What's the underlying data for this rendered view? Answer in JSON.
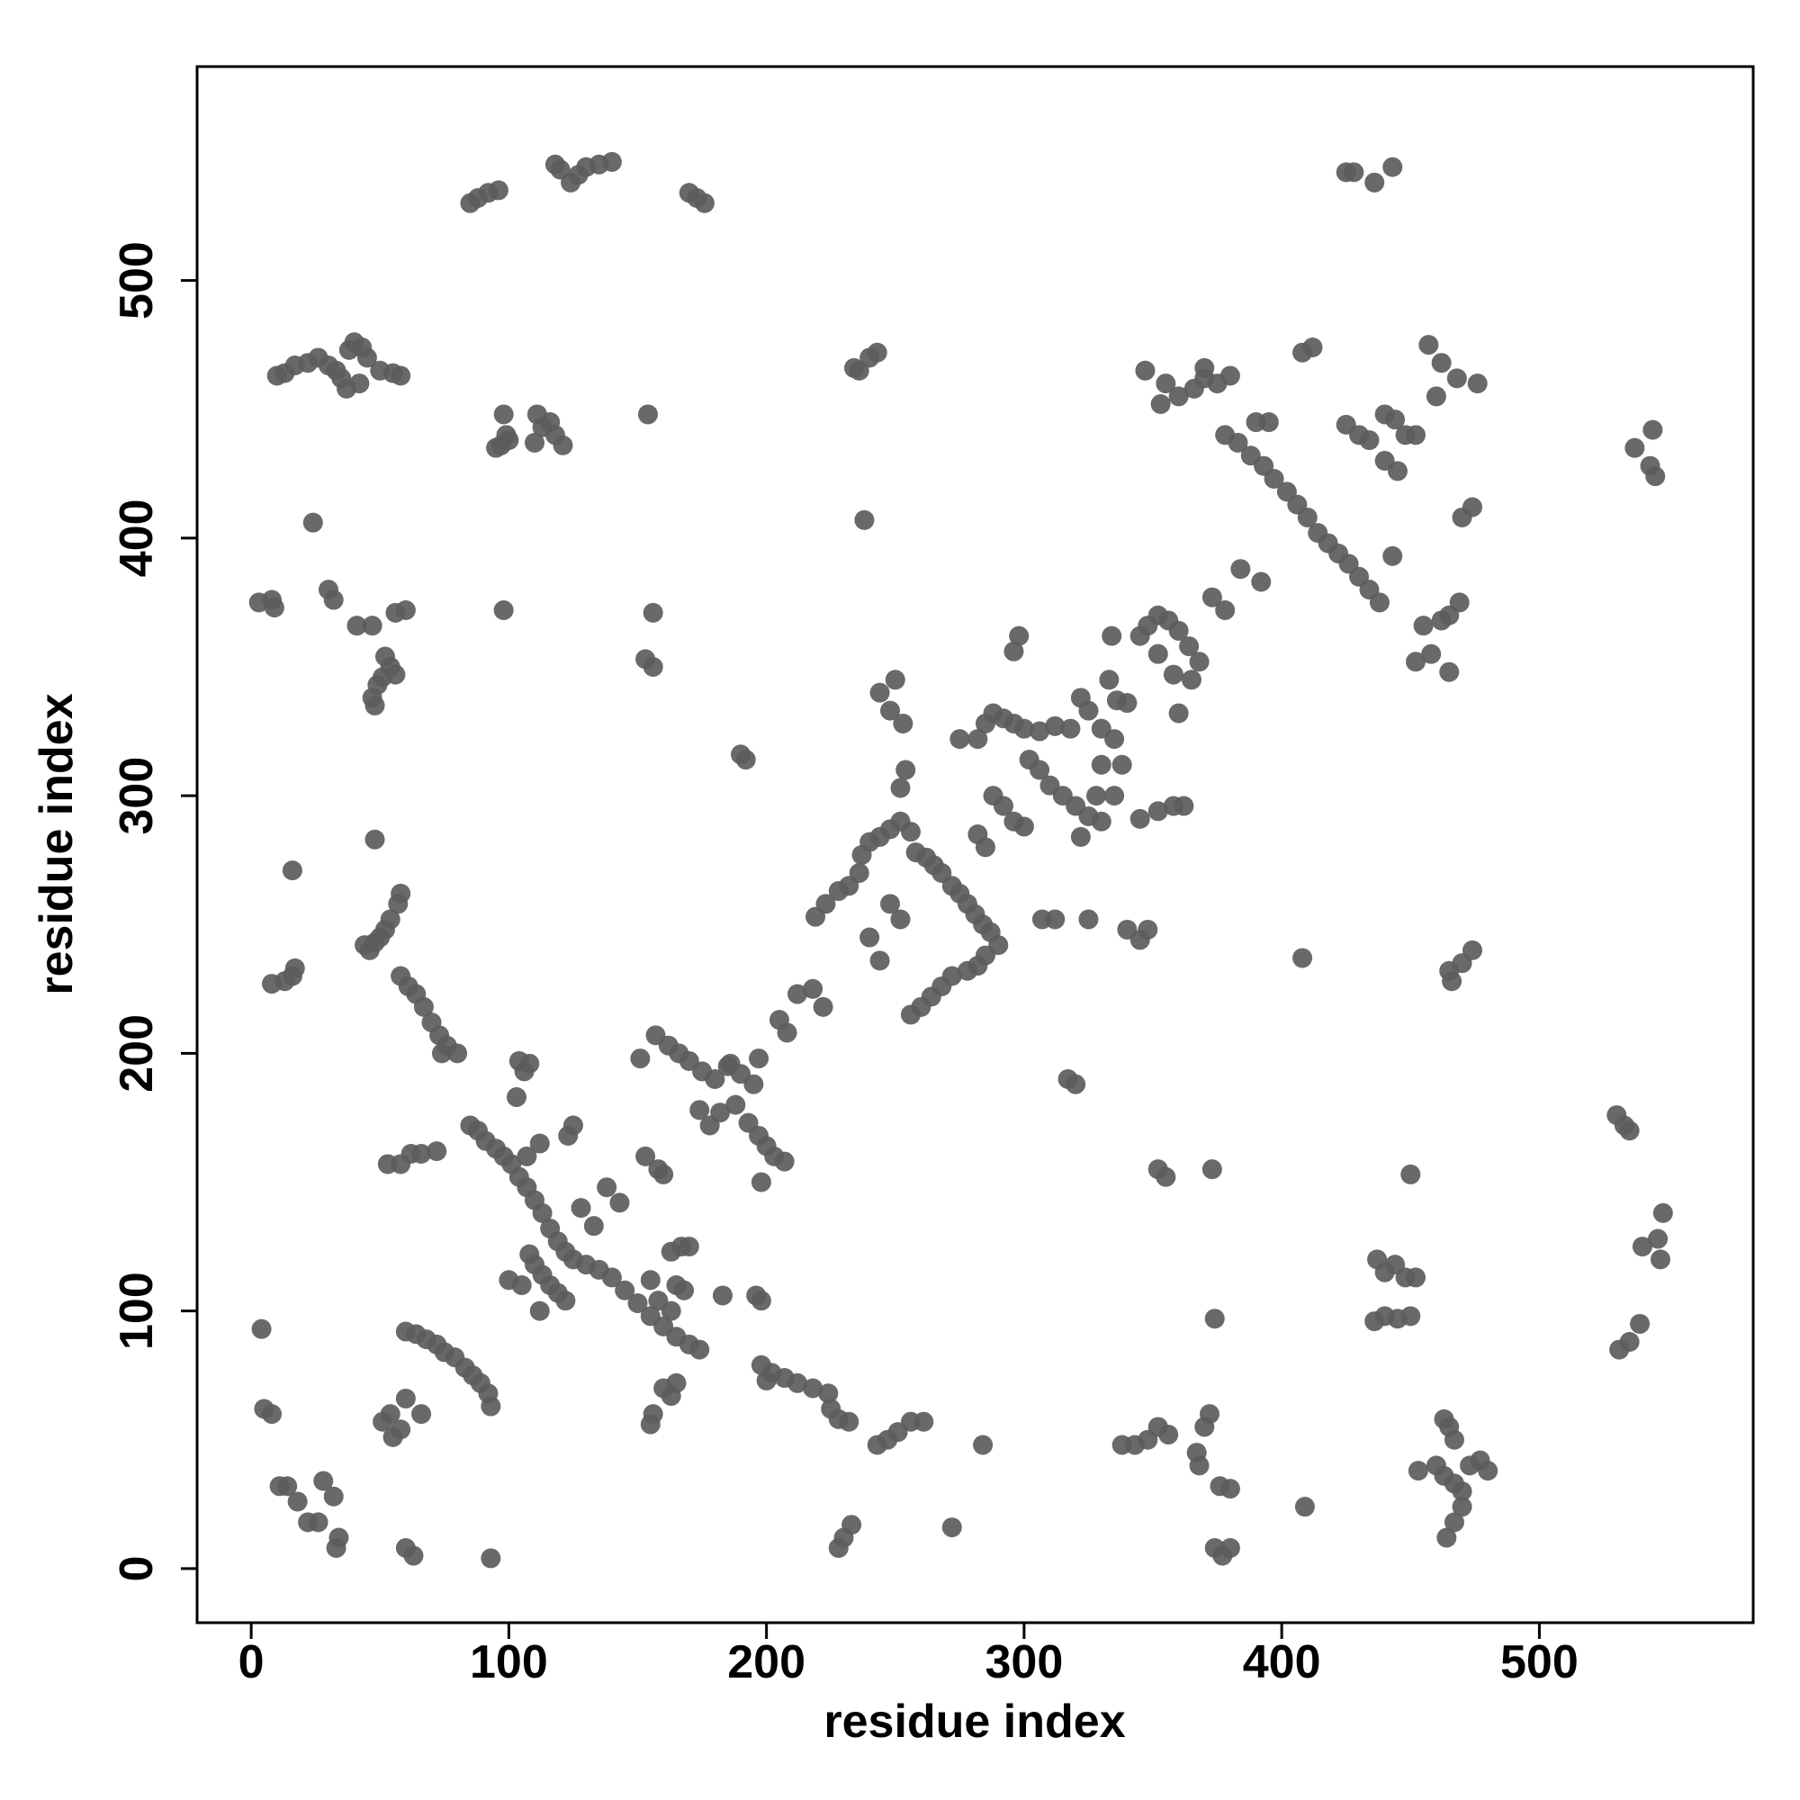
{
  "chart_data": {
    "type": "scatter",
    "x_label": "residue index",
    "y_label": "residue index",
    "xlim": [
      -21,
      583
    ],
    "ylim": [
      -21,
      583
    ],
    "xticks": [
      0,
      100,
      200,
      300,
      400,
      500
    ],
    "yticks": [
      0,
      100,
      200,
      300,
      400,
      500
    ],
    "color": "#5c5c5c",
    "x": [
      85,
      88,
      92,
      96,
      118,
      120,
      124,
      127,
      130,
      135,
      140,
      170,
      173,
      176,
      425,
      428,
      436,
      443,
      10,
      13,
      17,
      22,
      26,
      30,
      33,
      35,
      37,
      38,
      40,
      43,
      45,
      42,
      50,
      55,
      58,
      98,
      99,
      97,
      95,
      100,
      111,
      113,
      110,
      116,
      118,
      121,
      154,
      236,
      240,
      243,
      234,
      24,
      238,
      3,
      8,
      9,
      30,
      32,
      41,
      47,
      56,
      60,
      98,
      156,
      47,
      49,
      51,
      54,
      56,
      48,
      52,
      153,
      156,
      190,
      192,
      48,
      16,
      58,
      57,
      54,
      52,
      50,
      48,
      46,
      44,
      58,
      61,
      64,
      67,
      70,
      73,
      76,
      80,
      74,
      8,
      13,
      16,
      17,
      104,
      106,
      108,
      103,
      85,
      88,
      91,
      95,
      98,
      101,
      104,
      107,
      110,
      113,
      116,
      119,
      122,
      125,
      130,
      135,
      140,
      145,
      150,
      155,
      160,
      165,
      170,
      174,
      108,
      110,
      113,
      116,
      119,
      122,
      112,
      105,
      100,
      128,
      133,
      138,
      143,
      123,
      125,
      112,
      107,
      53,
      58,
      62,
      66,
      72,
      153,
      158,
      160,
      163,
      167,
      170,
      155,
      165,
      168,
      158,
      163,
      196,
      198,
      183,
      151,
      157,
      162,
      166,
      170,
      175,
      180,
      185,
      190,
      195,
      178,
      174,
      182,
      188,
      193,
      197,
      200,
      203,
      207,
      198,
      186,
      197,
      205,
      208,
      212,
      218,
      222,
      219,
      223,
      228,
      232,
      236,
      237,
      240,
      244,
      248,
      252,
      256,
      258,
      262,
      265,
      268,
      272,
      275,
      278,
      281,
      284,
      287,
      290,
      285,
      282,
      278,
      272,
      268,
      264,
      260,
      256,
      240,
      244,
      248,
      252,
      250,
      244,
      248,
      253,
      252,
      254,
      282,
      285,
      275,
      282,
      285,
      288,
      292,
      296,
      300,
      306,
      312,
      318,
      296,
      298,
      302,
      306,
      310,
      315,
      320,
      325,
      330,
      322,
      328,
      335,
      330,
      288,
      292,
      296,
      300,
      307,
      312,
      325,
      340,
      345,
      348,
      322,
      325,
      330,
      335,
      338,
      333,
      336,
      340,
      334,
      345,
      348,
      352,
      356,
      360,
      364,
      368,
      365,
      358,
      352,
      360,
      345,
      352,
      358,
      362,
      355,
      360,
      353,
      347,
      366,
      370,
      375,
      380,
      370,
      378,
      383,
      388,
      393,
      397,
      402,
      406,
      410,
      414,
      418,
      422,
      426,
      430,
      434,
      438,
      384,
      392,
      390,
      395,
      373,
      378,
      408,
      412,
      425,
      430,
      434,
      440,
      444,
      440,
      445,
      448,
      452,
      443,
      457,
      462,
      460,
      468,
      476,
      465,
      469,
      462,
      455,
      458,
      452,
      465,
      470,
      474,
      537,
      544,
      543,
      545,
      530,
      533,
      535,
      540,
      546,
      548,
      547,
      539,
      535,
      531,
      408,
      465,
      470,
      474,
      466,
      317,
      320,
      352,
      355,
      373,
      450,
      437,
      440,
      444,
      448,
      452,
      436,
      440,
      445,
      450,
      374,
      343,
      348,
      352,
      356,
      338,
      372,
      370,
      367,
      368,
      376,
      380,
      374,
      377,
      380,
      409,
      284,
      272,
      228,
      230,
      233,
      243,
      247,
      251,
      256,
      261,
      225,
      228,
      232,
      224,
      218,
      212,
      207,
      202,
      198,
      200,
      460,
      463,
      467,
      470,
      473,
      477,
      480,
      465,
      467,
      463,
      464,
      467,
      470,
      453,
      4,
      5,
      8,
      11,
      14,
      18,
      22,
      26,
      28,
      32,
      34,
      33,
      60,
      64,
      68,
      72,
      75,
      79,
      83,
      86,
      89,
      92,
      93,
      55,
      58,
      51,
      54,
      60,
      66,
      60,
      63,
      93,
      155,
      156,
      160,
      163,
      165
    ],
    "values": [
      530,
      532,
      534,
      535,
      545,
      543,
      538,
      541,
      544,
      545,
      546,
      534,
      532,
      530,
      542,
      542,
      538,
      544,
      463,
      464,
      467,
      468,
      470,
      467,
      465,
      462,
      458,
      473,
      476,
      474,
      470,
      460,
      465,
      464,
      463,
      448,
      440,
      436,
      435,
      438,
      448,
      443,
      437,
      445,
      440,
      436,
      448,
      465,
      470,
      472,
      466,
      406,
      407,
      375,
      376,
      373,
      380,
      376,
      366,
      366,
      371,
      372,
      372,
      371,
      338,
      343,
      346,
      350,
      347,
      335,
      354,
      353,
      350,
      316,
      314,
      283,
      271,
      262,
      258,
      252,
      248,
      245,
      243,
      240,
      242,
      230,
      226,
      223,
      218,
      212,
      207,
      203,
      200,
      200,
      227,
      228,
      230,
      233,
      197,
      193,
      196,
      183,
      172,
      170,
      166,
      163,
      160,
      157,
      152,
      148,
      143,
      138,
      132,
      127,
      123,
      120,
      118,
      116,
      113,
      108,
      103,
      98,
      94,
      90,
      87,
      85,
      122,
      118,
      114,
      110,
      107,
      104,
      100,
      110,
      112,
      140,
      133,
      148,
      142,
      168,
      172,
      165,
      160,
      157,
      157,
      161,
      161,
      162,
      160,
      155,
      153,
      123,
      125,
      125,
      112,
      110,
      108,
      104,
      100,
      106,
      104,
      106,
      198,
      207,
      203,
      200,
      197,
      193,
      190,
      195,
      192,
      188,
      172,
      178,
      177,
      180,
      173,
      168,
      164,
      160,
      158,
      150,
      196,
      198,
      213,
      208,
      223,
      225,
      218,
      253,
      258,
      263,
      265,
      270,
      277,
      282,
      284,
      287,
      290,
      286,
      278,
      276,
      273,
      270,
      265,
      262,
      258,
      254,
      250,
      247,
      242,
      238,
      234,
      232,
      230,
      226,
      222,
      218,
      215,
      245,
      236,
      258,
      252,
      345,
      340,
      333,
      328,
      303,
      310,
      285,
      280,
      322,
      322,
      328,
      332,
      330,
      328,
      326,
      325,
      327,
      326,
      356,
      362,
      314,
      310,
      304,
      300,
      296,
      292,
      290,
      284,
      300,
      300,
      312,
      300,
      296,
      290,
      288,
      252,
      252,
      252,
      248,
      244,
      248,
      338,
      333,
      326,
      322,
      312,
      345,
      337,
      336,
      362,
      362,
      366,
      370,
      368,
      364,
      358,
      352,
      345,
      347,
      355,
      332,
      291,
      294,
      296,
      296,
      460,
      455,
      452,
      465,
      458,
      462,
      460,
      463,
      466,
      440,
      437,
      432,
      428,
      423,
      418,
      413,
      408,
      402,
      398,
      394,
      390,
      385,
      380,
      375,
      388,
      383,
      445,
      445,
      377,
      372,
      472,
      474,
      444,
      440,
      438,
      448,
      446,
      430,
      426,
      440,
      440,
      393,
      475,
      468,
      455,
      462,
      460,
      370,
      375,
      368,
      366,
      355,
      352,
      348,
      408,
      412,
      435,
      442,
      428,
      424,
      176,
      172,
      170,
      125,
      128,
      138,
      120,
      95,
      88,
      85,
      237,
      232,
      235,
      240,
      228,
      190,
      188,
      155,
      152,
      155,
      153,
      120,
      115,
      118,
      113,
      113,
      96,
      98,
      97,
      98,
      97,
      48,
      50,
      55,
      52,
      48,
      60,
      55,
      45,
      40,
      32,
      31,
      8,
      5,
      8,
      24,
      48,
      16,
      8,
      12,
      17,
      48,
      50,
      53,
      57,
      57,
      62,
      58,
      57,
      68,
      70,
      72,
      74,
      76,
      79,
      73,
      40,
      36,
      33,
      30,
      40,
      42,
      38,
      55,
      50,
      58,
      12,
      18,
      24,
      38,
      93,
      62,
      60,
      32,
      32,
      26,
      18,
      18,
      34,
      28,
      12,
      8,
      92,
      91,
      89,
      87,
      84,
      82,
      78,
      75,
      72,
      68,
      63,
      51,
      54,
      57,
      60,
      66,
      60,
      8,
      5,
      4,
      56,
      60,
      70,
      67,
      72
    ]
  }
}
